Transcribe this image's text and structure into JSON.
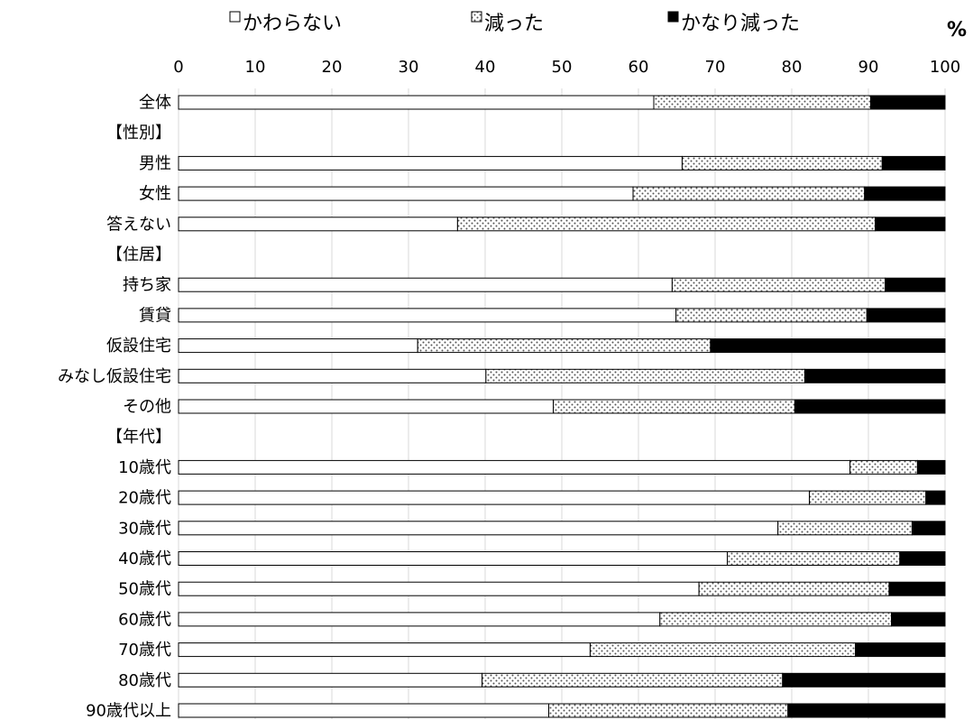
{
  "chart_data": {
    "type": "bar",
    "orientation": "horizontal",
    "stacked": true,
    "unit": "%",
    "title": "",
    "xlim": [
      0,
      100
    ],
    "xticks": [
      "0",
      "10",
      "20",
      "30",
      "40",
      "50",
      "60",
      "70",
      "80",
      "90",
      "100"
    ],
    "grid": "vertical",
    "legend_position": "top",
    "categories": [
      "全体",
      "【性別】",
      "男性",
      "女性",
      "答えない",
      "【住居】",
      "持ち家",
      "賃貸",
      "仮設住宅",
      "みなし仮設住宅",
      "その他",
      "【年代】",
      "10歳代",
      "20歳代",
      "30歳代",
      "40歳代",
      "50歳代",
      "60歳代",
      "70歳代",
      "80歳代",
      "90歳代以上"
    ],
    "series": [
      {
        "name": "かわらない",
        "fill": "white",
        "color": "#ffffff",
        "values": [
          62,
          null,
          65.7,
          59.3,
          36.4,
          null,
          64.4,
          64.9,
          31.2,
          40.1,
          48.9,
          null,
          87.6,
          82.3,
          78.2,
          71.6,
          67.9,
          62.8,
          53.7,
          39.6,
          48.3
        ]
      },
      {
        "name": "減った",
        "fill": "dotted",
        "color": "#bfbfbf",
        "values": [
          28.3,
          null,
          26.1,
          30.2,
          54.5,
          null,
          27.8,
          24.9,
          38.2,
          41.6,
          31.5,
          null,
          8.8,
          15.2,
          17.5,
          22.5,
          24.8,
          30.2,
          34.6,
          39.2,
          31.2
        ]
      },
      {
        "name": "かなり減った",
        "fill": "black",
        "color": "#000000",
        "values": [
          9.7,
          null,
          8.2,
          10.5,
          9.1,
          null,
          7.8,
          10.2,
          30.6,
          18.3,
          19.6,
          null,
          3.6,
          2.5,
          4.3,
          5.9,
          7.3,
          7.0,
          11.7,
          21.2,
          20.5
        ]
      }
    ]
  }
}
